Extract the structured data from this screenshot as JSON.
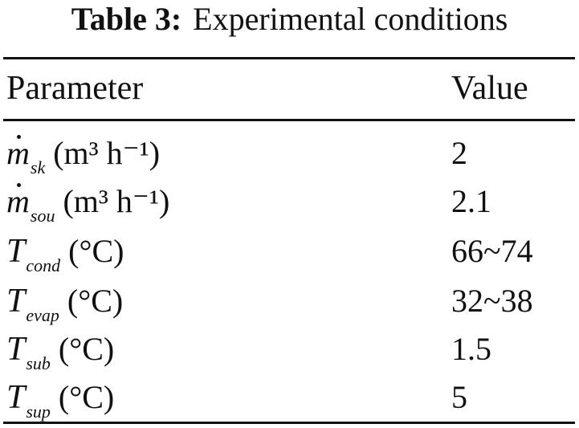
{
  "caption": {
    "label": "Table 3:",
    "title": "Experimental conditions"
  },
  "table": {
    "headers": {
      "parameter": "Parameter",
      "value": "Value"
    },
    "rows": [
      {
        "symbol": "m",
        "dot": true,
        "subscript": "sk",
        "unit": "(m³ h⁻¹)",
        "value": "2"
      },
      {
        "symbol": "m",
        "dot": true,
        "subscript": "sou",
        "unit": "(m³ h⁻¹)",
        "value": "2.1"
      },
      {
        "symbol": "T",
        "dot": false,
        "subscript": "cond",
        "unit": "(°C)",
        "value": "66~74"
      },
      {
        "symbol": "T",
        "dot": false,
        "subscript": "evap",
        "unit": "(°C)",
        "value": "32~38"
      },
      {
        "symbol": "T",
        "dot": false,
        "subscript": "sub",
        "unit": "(°C)",
        "value": "1.5"
      },
      {
        "symbol": "T",
        "dot": false,
        "subscript": "sup",
        "unit": "(°C)",
        "value": "5"
      }
    ]
  }
}
